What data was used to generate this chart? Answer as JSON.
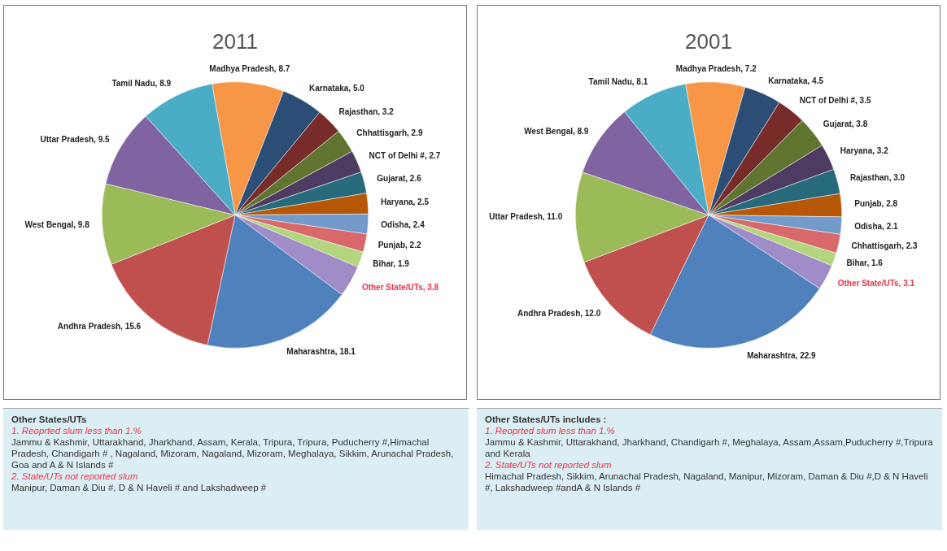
{
  "chart_data": [
    {
      "type": "pie",
      "title": "2011",
      "legend": false,
      "data_labels": true,
      "categories": [
        "Madhya Pradesh",
        "Karnataka",
        "Rajasthan",
        "Chhattisgarh",
        "NCT of Delhi #",
        "Gujarat",
        "Haryana",
        "Odisha",
        "Punjab",
        "Bihar",
        "Other State/UTs",
        "Maharashtra",
        "Andhra Pradesh",
        "West Bengal",
        "Uttar Pradesh",
        "Tamil Nadu"
      ],
      "values": [
        8.7,
        5.0,
        3.2,
        2.9,
        2.7,
        2.6,
        2.5,
        2.4,
        2.2,
        1.9,
        3.8,
        18.1,
        15.6,
        9.8,
        9.5,
        8.9
      ],
      "value_labels": [
        "8.7",
        "5.0",
        "3.2",
        "2.9",
        "2.7",
        "2.6",
        "2.5",
        "2.4",
        "2.2",
        "1.9",
        "3.8",
        "18.1",
        "15.6",
        "9.8",
        "9.5",
        "8.9"
      ],
      "colors": [
        "#f79646",
        "#2c4d75",
        "#772c2a",
        "#5f7530",
        "#4d3b62",
        "#276a7c",
        "#b65708",
        "#729aca",
        "#d9686a",
        "#b3d57e",
        "#a08cc6",
        "#4f81bd",
        "#c0504d",
        "#9bbb59",
        "#8064a2",
        "#4bacc6"
      ],
      "annotations": [
        "Other States/UTs",
        "1. Reoprted slum less than 1.%",
        "Jammu & Kashmir, Uttarakhand, Jharkhand, Assam, Kerala, Tripura, Tripura, Puducherry  #,Himachal Pradesh, Chandigarh # , Nagaland, Mizoram, Nagaland, Mizoram, Meghalaya, Sikkim, Arunachal Pradesh, Goa and A & N Islands #",
        "2. State/UTs not reported slum",
        "Manipur, Daman & Diu #, D & N Haveli # and Lakshadweep #"
      ]
    },
    {
      "type": "pie",
      "title": "2001",
      "legend": false,
      "data_labels": true,
      "categories": [
        "Madhya Pradesh",
        "Karnataka",
        "NCT of Delhi #",
        "Gujarat",
        "Haryana",
        "Rajasthan",
        "Punjab",
        "Odisha",
        "Chhattisgarh",
        "Bihar",
        "Other State/UTs",
        "Maharashtra",
        "Andhra Pradesh",
        "Uttar Pradesh",
        "West Bengal",
        "Tamil Nadu"
      ],
      "values": [
        7.2,
        4.5,
        3.5,
        3.8,
        3.2,
        3.0,
        2.8,
        2.1,
        2.3,
        1.6,
        3.1,
        22.9,
        12.0,
        11.0,
        8.9,
        8.1
      ],
      "value_labels": [
        "7.2",
        "4.5",
        "3.5",
        "3.8",
        "3.2",
        "3.0",
        "2.8",
        "2.1",
        "2.3",
        "1.6",
        "3.1",
        "22.9",
        "12.0",
        "11.0",
        "8.9",
        "8.1"
      ],
      "colors": [
        "#f79646",
        "#2c4d75",
        "#772c2a",
        "#5f7530",
        "#4d3b62",
        "#276a7c",
        "#b65708",
        "#729aca",
        "#d9686a",
        "#b3d57e",
        "#a08cc6",
        "#4f81bd",
        "#c0504d",
        "#9bbb59",
        "#8064a2",
        "#4bacc6"
      ],
      "annotations": [
        "Other States/UTs  includes :",
        "1. Reoprted slum less than 1.%",
        "Jammu & Kashmir, Uttarakhand, Jharkhand, Chandigarh #, Meghalaya, Assam,Assam,Puducherry #,Tripura and Kerala",
        "2. State/UTs not reported slum",
        "Himachal Pradesh, Sikkim, Arunachal Pradesh, Nagaland, Manipur, Mizoram, Daman & Diu #,D & N Haveli #, Lakshadweep #andA & N Islands #"
      ]
    }
  ]
}
